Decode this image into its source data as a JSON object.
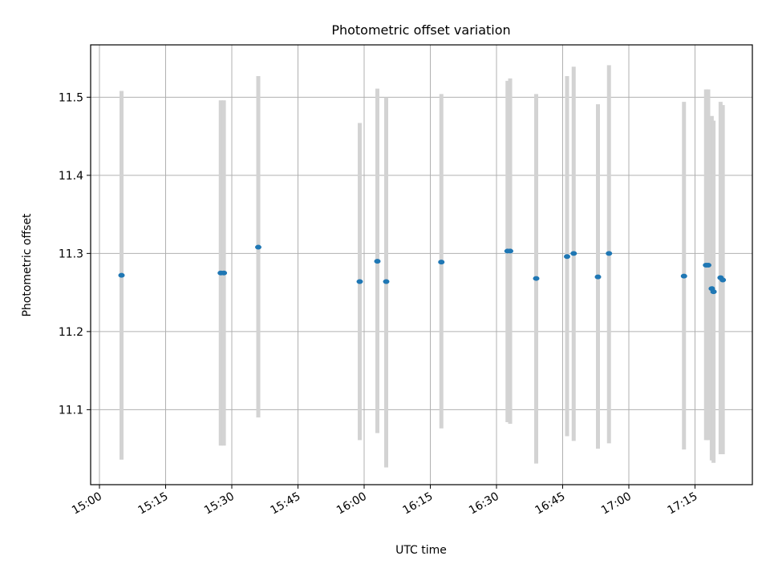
{
  "chart_data": {
    "type": "scatter",
    "title": "Photometric offset variation",
    "xlabel": "UTC time",
    "ylabel": "Photometric offset",
    "x_axis": {
      "type": "time",
      "range": [
        "14:58",
        "17:28"
      ],
      "ticks": [
        "15:00",
        "15:15",
        "15:30",
        "15:45",
        "16:00",
        "16:15",
        "16:30",
        "16:45",
        "17:00",
        "17:15"
      ]
    },
    "y_axis": {
      "range": [
        11.004,
        11.567
      ],
      "ticks": [
        11.1,
        11.2,
        11.3,
        11.4,
        11.5
      ],
      "tick_labels": [
        "11.1",
        "11.2",
        "11.3",
        "11.4",
        "11.5"
      ]
    },
    "grid": true,
    "colors": {
      "points": "#1f77b4",
      "errorbars": "#d3d3d3",
      "grid": "#b0b0b0"
    },
    "points": [
      {
        "t": "15:05",
        "y": 11.272,
        "ylow": 11.036,
        "yhigh": 11.508
      },
      {
        "t": "15:27.5",
        "y": 11.275,
        "ylow": 11.054,
        "yhigh": 11.496
      },
      {
        "t": "15:28.2",
        "y": 11.275,
        "ylow": 11.054,
        "yhigh": 11.496
      },
      {
        "t": "15:36",
        "y": 11.308,
        "ylow": 11.09,
        "yhigh": 11.527
      },
      {
        "t": "15:59",
        "y": 11.264,
        "ylow": 11.061,
        "yhigh": 11.467
      },
      {
        "t": "16:03",
        "y": 11.29,
        "ylow": 11.07,
        "yhigh": 11.511
      },
      {
        "t": "16:05",
        "y": 11.264,
        "ylow": 11.026,
        "yhigh": 11.5
      },
      {
        "t": "16:17.5",
        "y": 11.289,
        "ylow": 11.076,
        "yhigh": 11.504
      },
      {
        "t": "16:32.5",
        "y": 11.303,
        "ylow": 11.084,
        "yhigh": 11.521
      },
      {
        "t": "16:33.1",
        "y": 11.303,
        "ylow": 11.082,
        "yhigh": 11.524
      },
      {
        "t": "16:39",
        "y": 11.268,
        "ylow": 11.031,
        "yhigh": 11.504
      },
      {
        "t": "16:46",
        "y": 11.296,
        "ylow": 11.066,
        "yhigh": 11.527
      },
      {
        "t": "16:47.5",
        "y": 11.3,
        "ylow": 11.06,
        "yhigh": 11.539
      },
      {
        "t": "16:53",
        "y": 11.27,
        "ylow": 11.05,
        "yhigh": 11.491
      },
      {
        "t": "16:55.5",
        "y": 11.3,
        "ylow": 11.057,
        "yhigh": 11.541
      },
      {
        "t": "17:12.5",
        "y": 11.271,
        "ylow": 11.049,
        "yhigh": 11.494
      },
      {
        "t": "17:17.5",
        "y": 11.285,
        "ylow": 11.061,
        "yhigh": 11.51
      },
      {
        "t": "17:18",
        "y": 11.285,
        "ylow": 11.061,
        "yhigh": 11.51
      },
      {
        "t": "17:18.8",
        "y": 11.255,
        "ylow": 11.035,
        "yhigh": 11.476
      },
      {
        "t": "17:19.2",
        "y": 11.251,
        "ylow": 11.032,
        "yhigh": 11.47
      },
      {
        "t": "17:20.8",
        "y": 11.269,
        "ylow": 11.043,
        "yhigh": 11.494
      },
      {
        "t": "17:21.3",
        "y": 11.266,
        "ylow": 11.043,
        "yhigh": 11.49
      }
    ]
  }
}
